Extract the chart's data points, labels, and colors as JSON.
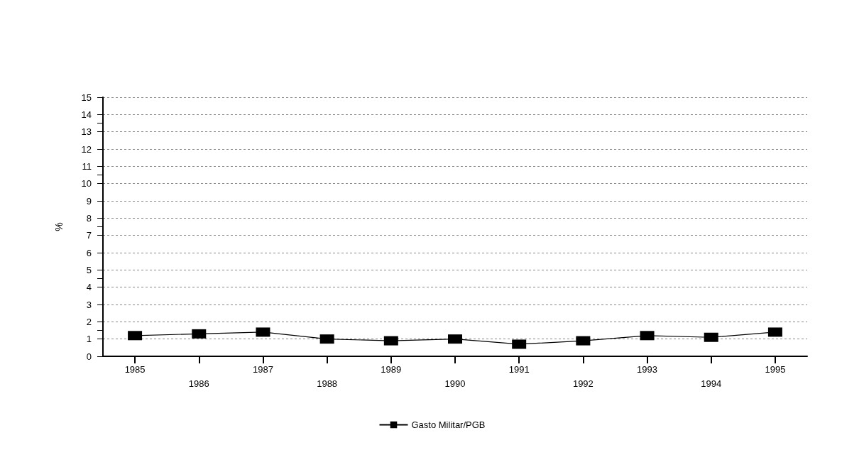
{
  "chart_data": {
    "type": "line",
    "ylabel": "%",
    "categories": [
      "1985",
      "1986",
      "1987",
      "1988",
      "1989",
      "1990",
      "1991",
      "1992",
      "1993",
      "1994",
      "1995"
    ],
    "series": [
      {
        "name": "Gasto Militar/PGB",
        "color": "#000000",
        "values": [
          1.2,
          1.3,
          1.4,
          1.0,
          0.9,
          1.0,
          0.7,
          0.9,
          1.2,
          1.1,
          1.4
        ]
      }
    ],
    "ylim": [
      0,
      15
    ],
    "yticks": [
      0,
      1,
      2,
      3,
      4,
      5,
      6,
      7,
      8,
      9,
      10,
      11,
      12,
      13,
      14,
      15
    ],
    "grid": "y",
    "legend": "bottom",
    "marker": "square",
    "line_style": "solid"
  }
}
